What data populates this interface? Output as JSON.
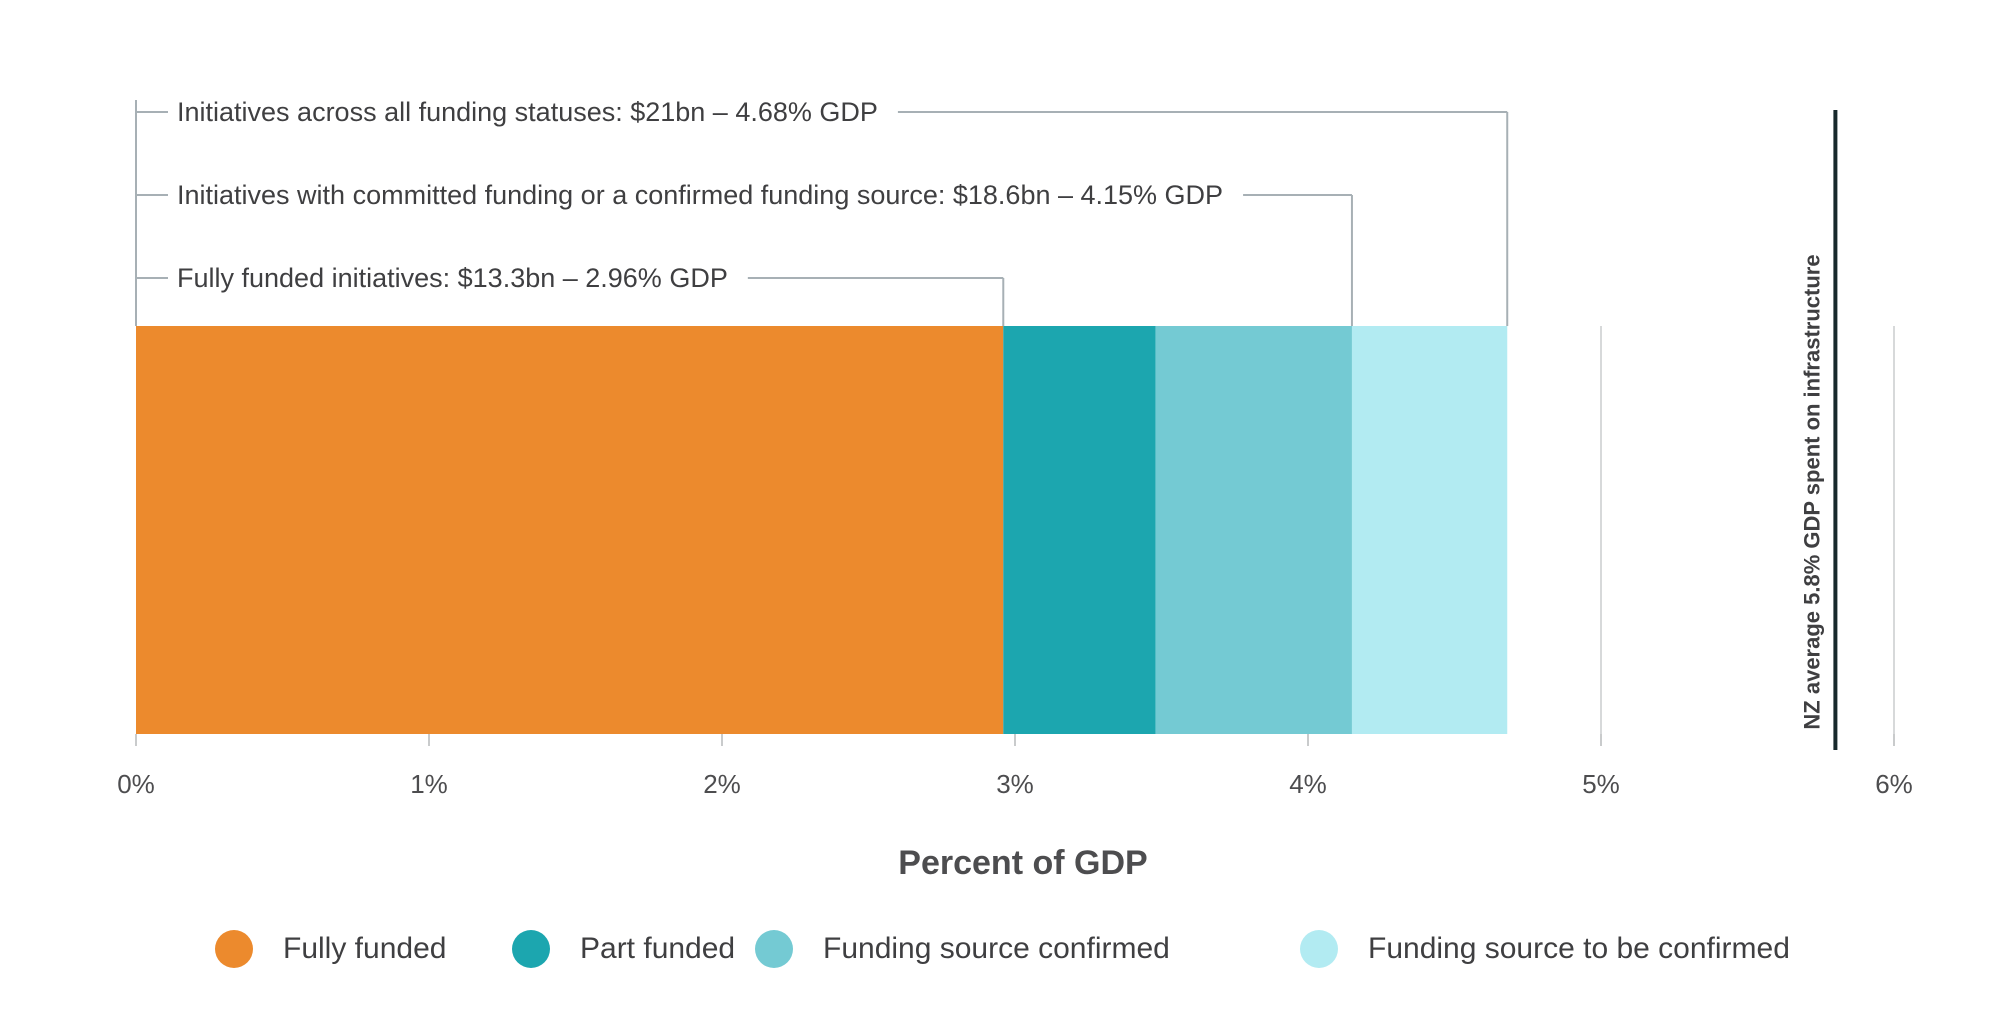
{
  "chart_data": {
    "type": "bar",
    "orientation": "horizontal-stacked",
    "xlabel": "Percent of GDP",
    "xlim": [
      0,
      6
    ],
    "x_ticks": [
      "0%",
      "1%",
      "2%",
      "3%",
      "4%",
      "5%",
      "6%"
    ],
    "grid": true,
    "legend_position": "bottom",
    "segments": [
      {
        "name": "Fully funded",
        "start": 0,
        "end": 2.96,
        "color": "#EC8A2D"
      },
      {
        "name": "Part funded",
        "start": 2.96,
        "end": 3.48,
        "color": "#1CA6AF"
      },
      {
        "name": "Funding source confirmed",
        "start": 3.48,
        "end": 4.15,
        "color": "#74CAD3"
      },
      {
        "name": "Funding source to be confirmed",
        "start": 4.15,
        "end": 4.68,
        "color": "#B2EBF2"
      }
    ],
    "annotations": [
      {
        "text": "Initiatives across all funding statuses: $21bn – 4.68% GDP",
        "value": 4.68
      },
      {
        "text": "Initiatives with committed funding or a confirmed funding source: $18.6bn – 4.15% GDP",
        "value": 4.15
      },
      {
        "text": "Fully funded initiatives: $13.3bn – 2.96% GDP",
        "value": 2.96
      }
    ],
    "reference_line": {
      "value": 5.8,
      "label": "NZ average 5.8% GDP spent on infrastructure",
      "color": "#17292c"
    }
  }
}
